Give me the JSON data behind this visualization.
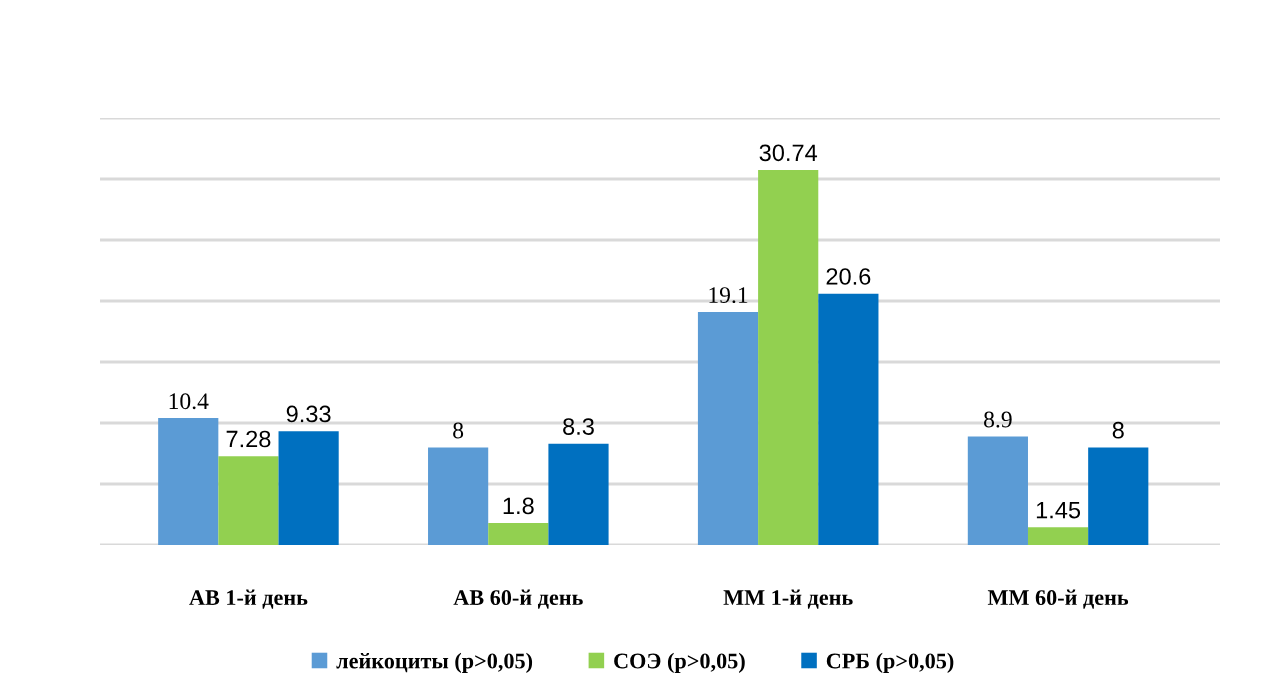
{
  "chart_data": {
    "type": "bar",
    "categories": [
      "АВ 1-й день",
      "АВ 60-й день",
      "ММ 1-й день",
      "ММ 60-й день"
    ],
    "series": [
      {
        "name": "лейкоциты (p>0,05)",
        "color": "#5b9bd5",
        "values": [
          10.4,
          8,
          19.1,
          8.9
        ]
      },
      {
        "name": "СОЭ (p>0,05)",
        "color": "#92d050",
        "values": [
          7.28,
          1.8,
          30.74,
          1.45
        ]
      },
      {
        "name": "СРБ (p>0,05)",
        "color": "#0070c0",
        "values": [
          9.33,
          8.3,
          20.6,
          8
        ]
      }
    ],
    "ylim": [
      0,
      35
    ],
    "yticks": [
      {
        "value": 0,
        "label": null
      },
      {
        "value": 5,
        "label": null
      },
      {
        "value": 10,
        "label": null
      },
      {
        "value": 15,
        "label": null
      },
      {
        "value": 20,
        "label": null
      },
      {
        "value": 25,
        "label": null
      },
      {
        "value": 30,
        "label": null
      },
      {
        "value": 35,
        "label": null
      }
    ],
    "grid": "y",
    "legend": "bottom",
    "data_labels": true,
    "tick_labels": "x"
  }
}
